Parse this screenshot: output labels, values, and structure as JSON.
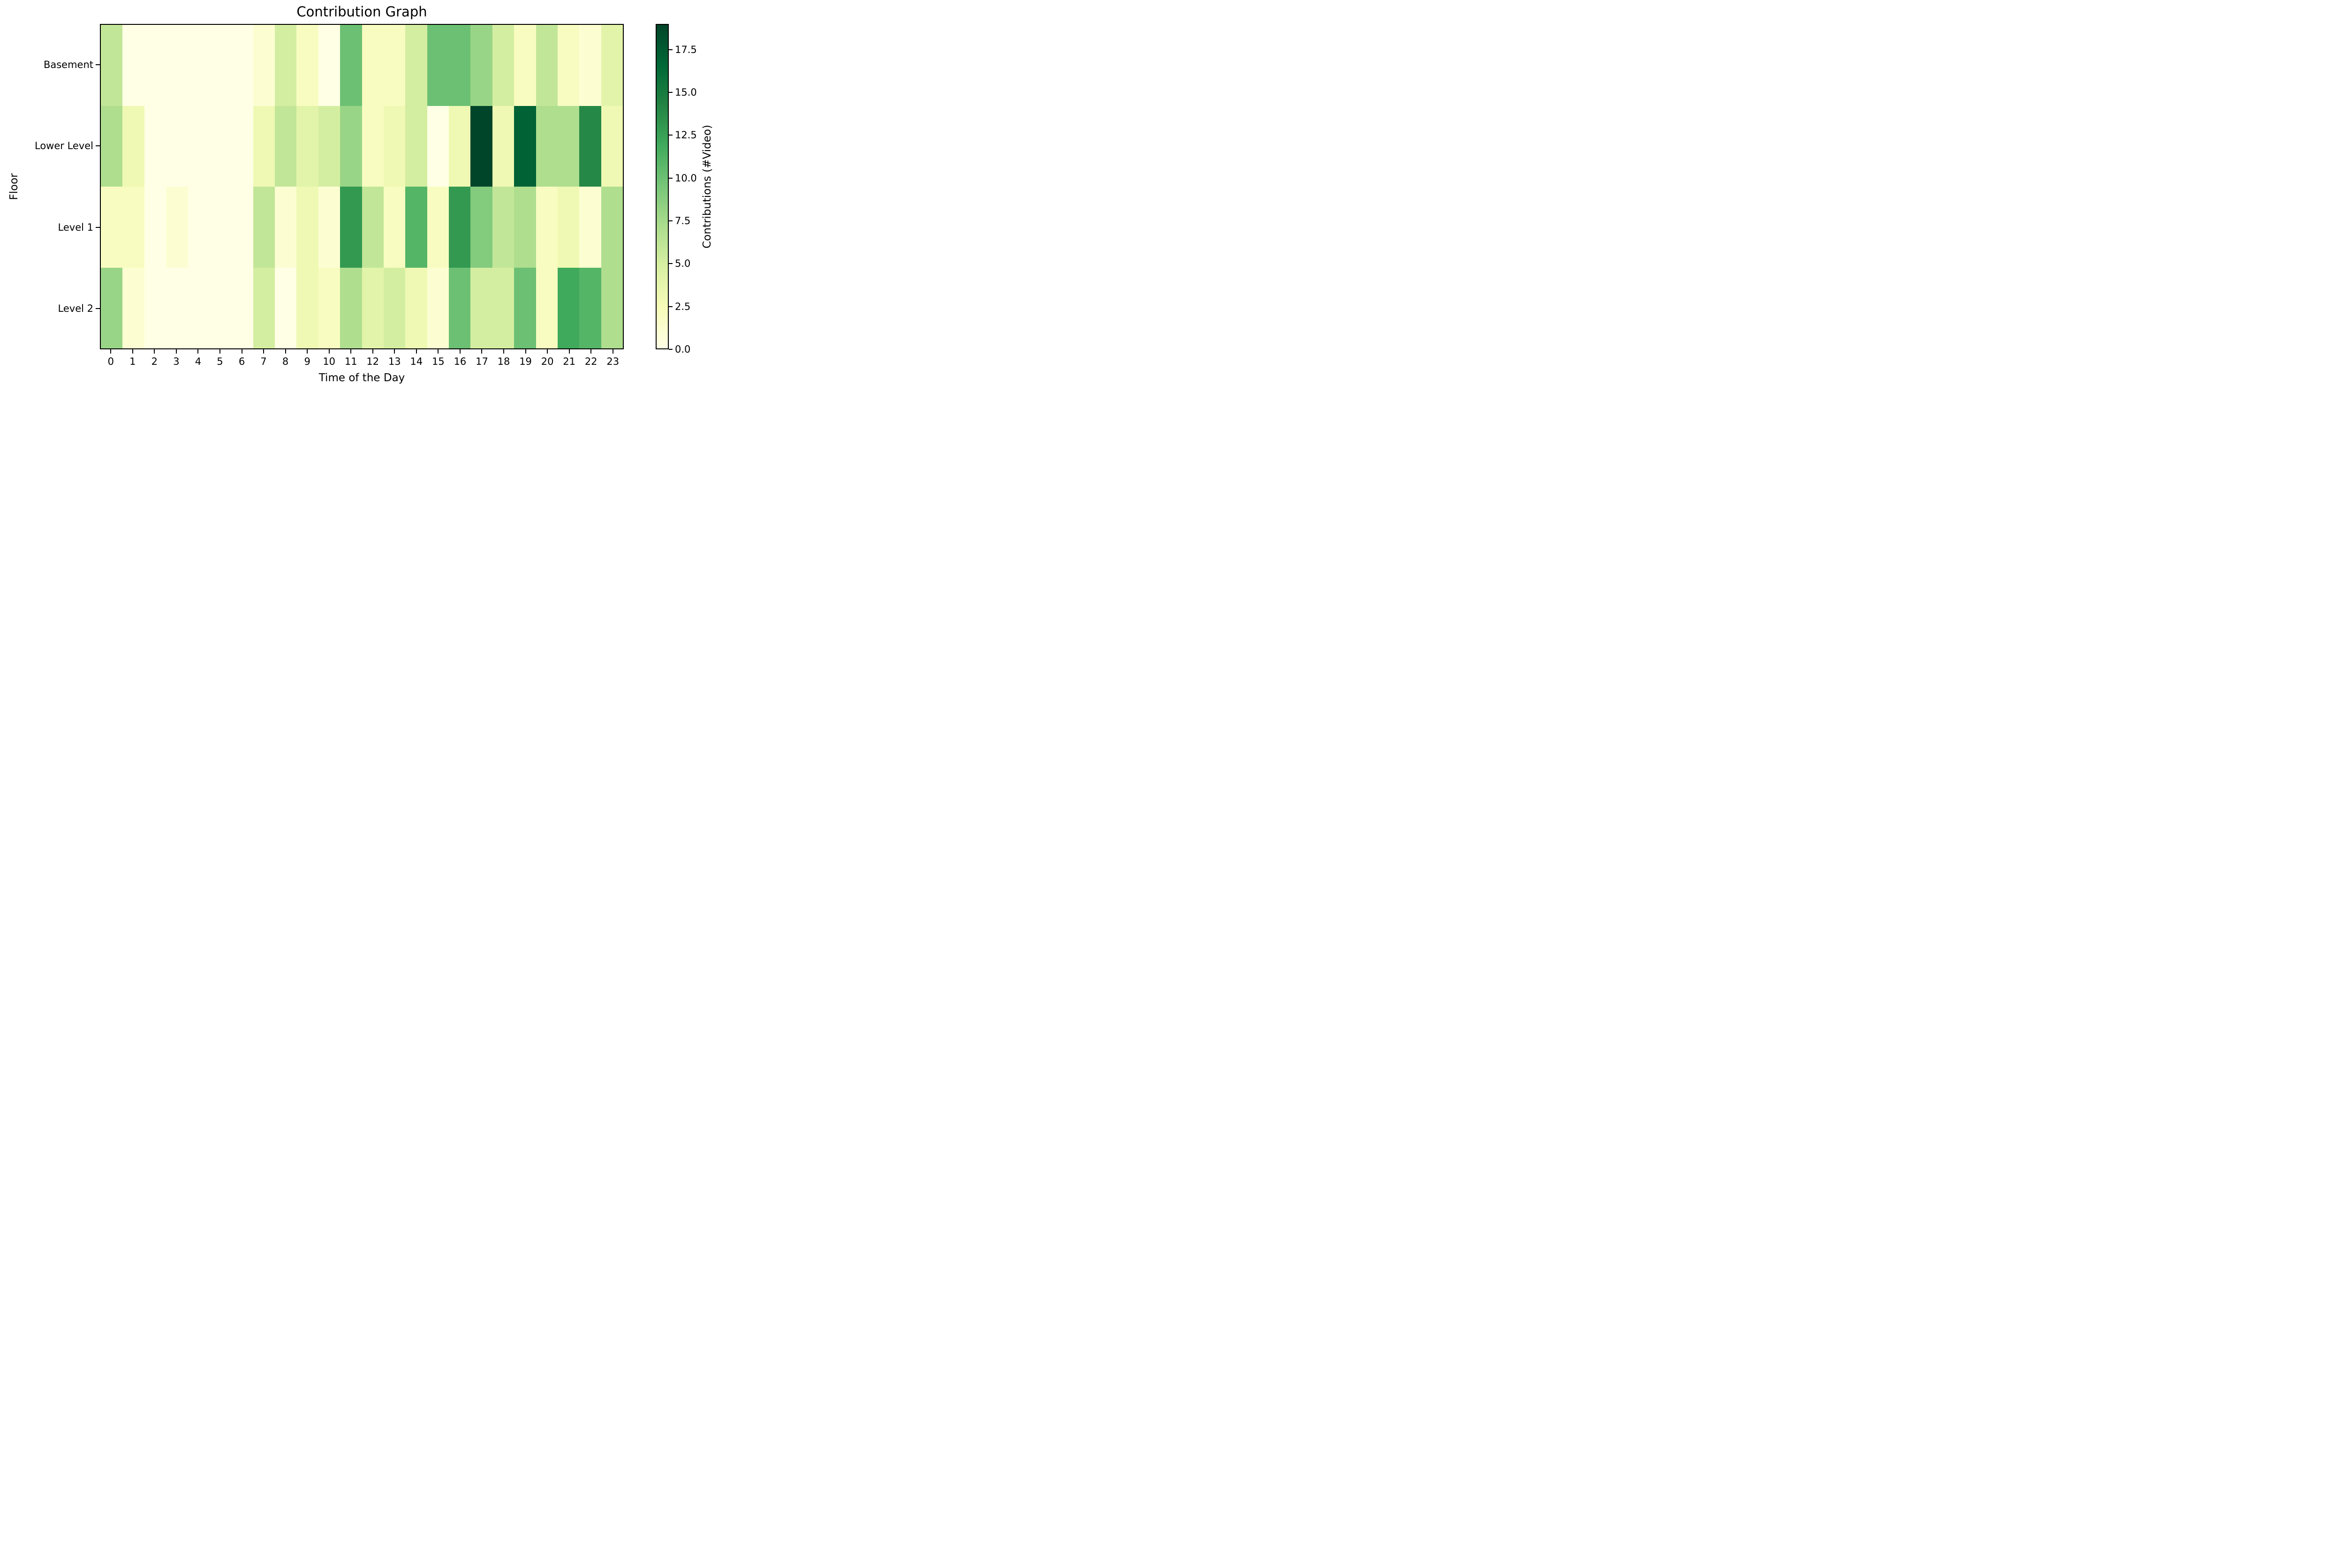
{
  "figure": {
    "background": "#ffffff",
    "text_color": "#000000"
  },
  "chart_data": {
    "type": "heatmap",
    "title": "Contribution Graph",
    "xlabel": "Time of the Day",
    "ylabel": "Floor",
    "x_ticks": [
      "0",
      "1",
      "2",
      "3",
      "4",
      "5",
      "6",
      "7",
      "8",
      "9",
      "10",
      "11",
      "12",
      "13",
      "14",
      "15",
      "16",
      "17",
      "18",
      "19",
      "20",
      "21",
      "22",
      "23"
    ],
    "y_ticks": [
      "Basement",
      "Lower Level",
      "Level 1",
      "Level 2"
    ],
    "rows": [
      {
        "label": "Basement",
        "values": [
          6,
          0,
          0,
          0,
          0,
          0,
          0,
          1,
          5,
          2,
          0,
          10,
          2,
          2,
          5,
          10,
          10,
          8,
          5,
          2,
          6,
          2,
          1,
          4
        ]
      },
      {
        "label": "Lower Level",
        "values": [
          7,
          3,
          0,
          0,
          0,
          0,
          0,
          3,
          6,
          4,
          5,
          8,
          2,
          3,
          5,
          0,
          3,
          19,
          3,
          17,
          7,
          7,
          14,
          3
        ]
      },
      {
        "label": "Level 1",
        "values": [
          2,
          2,
          0,
          1,
          0,
          0,
          0,
          6,
          1,
          3,
          1,
          13,
          6,
          2,
          11,
          2,
          13,
          9,
          6,
          7,
          2,
          3,
          1,
          7
        ]
      },
      {
        "label": "Level 2",
        "values": [
          8,
          1,
          0,
          0,
          0,
          0,
          0,
          5,
          0,
          3,
          2,
          7,
          4,
          5,
          3,
          1,
          10,
          5,
          5,
          10,
          2,
          12,
          11,
          7
        ]
      }
    ],
    "colorbar": {
      "label": "Contributions (#Video)",
      "vmin": 0,
      "vmax": 19,
      "tick_values": [
        0,
        2.5,
        5,
        7.5,
        10,
        12.5,
        15,
        17.5
      ],
      "tick_labels": [
        "0.0",
        "2.5",
        "5.0",
        "7.5",
        "10.0",
        "12.5",
        "15.0",
        "17.5"
      ],
      "colormap": "YlGn",
      "colormap_stops": [
        "#ffffe5",
        "#f7fcb9",
        "#d9f0a3",
        "#addd8e",
        "#78c679",
        "#41ab5d",
        "#238443",
        "#006837",
        "#004529"
      ]
    },
    "grid": false,
    "legend_position": "none"
  }
}
